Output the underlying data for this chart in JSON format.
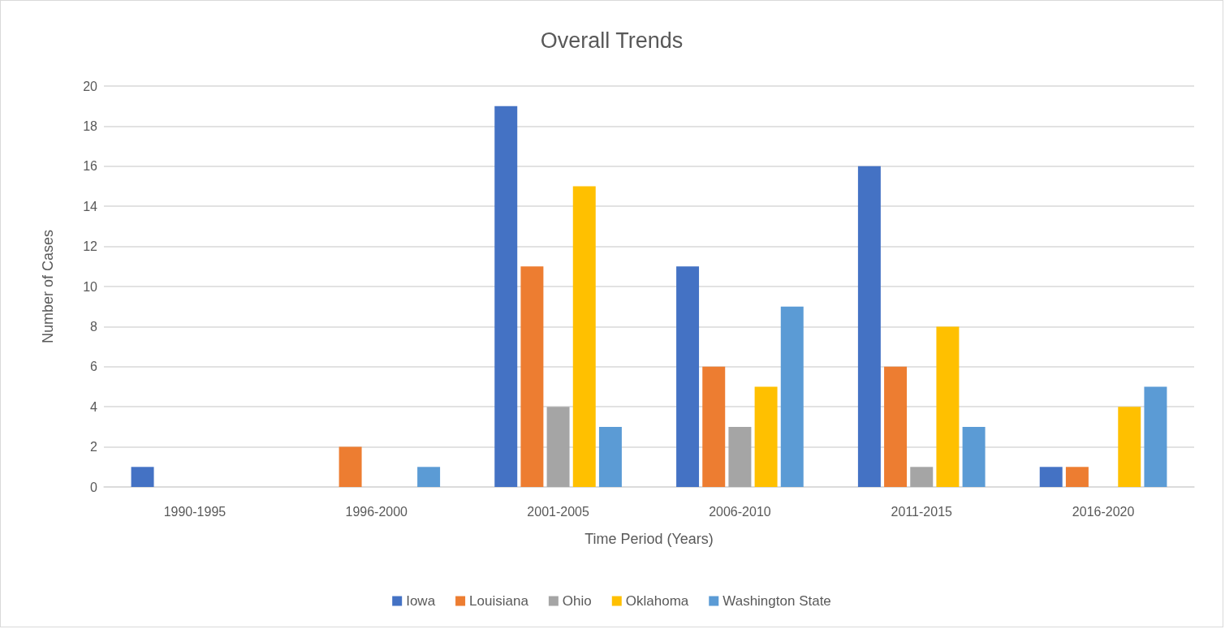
{
  "chart_data": {
    "type": "bar",
    "title": "Overall Trends",
    "xlabel": "Time Period (Years)",
    "ylabel": "Number of Cases",
    "categories": [
      "1990-1995",
      "1996-2000",
      "2001-2005",
      "2006-2010",
      "2011-2015",
      "2016-2020"
    ],
    "series": [
      {
        "name": "Iowa",
        "color": "#4472c4",
        "values": [
          1,
          0,
          19,
          11,
          16,
          1
        ]
      },
      {
        "name": "Louisiana",
        "color": "#ed7d31",
        "values": [
          0,
          2,
          11,
          6,
          6,
          1
        ]
      },
      {
        "name": "Ohio",
        "color": "#a5a5a5",
        "values": [
          0,
          0,
          4,
          3,
          1,
          0
        ]
      },
      {
        "name": "Oklahoma",
        "color": "#ffc000",
        "values": [
          0,
          0,
          15,
          5,
          8,
          4
        ]
      },
      {
        "name": "Washington State",
        "color": "#5b9bd5",
        "values": [
          0,
          1,
          3,
          9,
          3,
          5
        ]
      }
    ],
    "ylim": [
      0,
      20
    ],
    "yticks": [
      0,
      2,
      4,
      6,
      8,
      10,
      12,
      14,
      16,
      18,
      20
    ],
    "grid": "y",
    "legend": "bottom"
  }
}
